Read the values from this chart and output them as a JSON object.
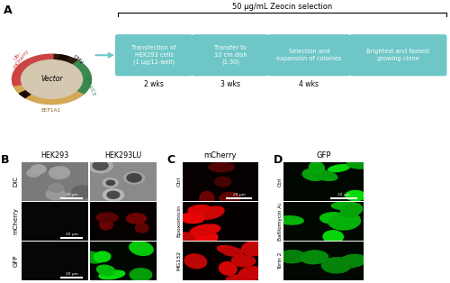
{
  "title_A": "A",
  "title_B": "B",
  "title_C": "C",
  "title_D": "D",
  "zeocin_label": "50 μg/mL Zeocin selection",
  "box1_text": "Transfection of\nHEK293 cells\n(1 μg/12-well)",
  "box1_time": "2 wks",
  "box2_text": "Transfer to\n10 cm dish\n(1:30)",
  "box2_time": "3 wks",
  "box3_text": "Selection and\nexpansion of colonies",
  "box3_time": "4 wks",
  "box4_text": "Brightest and fastest\ngrowing clone",
  "box4_time": "",
  "box_color": "#6EC6C6",
  "arrow_color": "#6EC6C6",
  "B_col1": "HEK293",
  "B_col2": "HEK293LU",
  "B_row1": "DIC",
  "B_row2": "mCherry",
  "B_row3": "GFP",
  "C_title": "mCherry",
  "C_row1": "Ctrl",
  "C_row2": "Epoxomicin",
  "C_row3": "MG132",
  "D_title": "GFP",
  "D_row1": "Ctrl",
  "D_row2": "Bafilomycin A₁",
  "D_row3": "Torin 2",
  "bg_color": "#ffffff",
  "vector_circle_color": "#d4c8b0",
  "cmv_color": "#2a1a0a",
  "eef1a1_color": "#d4a855",
  "gfp_lc3_color": "#3a8a50",
  "ub_mcherry_color": "#cc4444",
  "marker_color": "#1a0a00"
}
